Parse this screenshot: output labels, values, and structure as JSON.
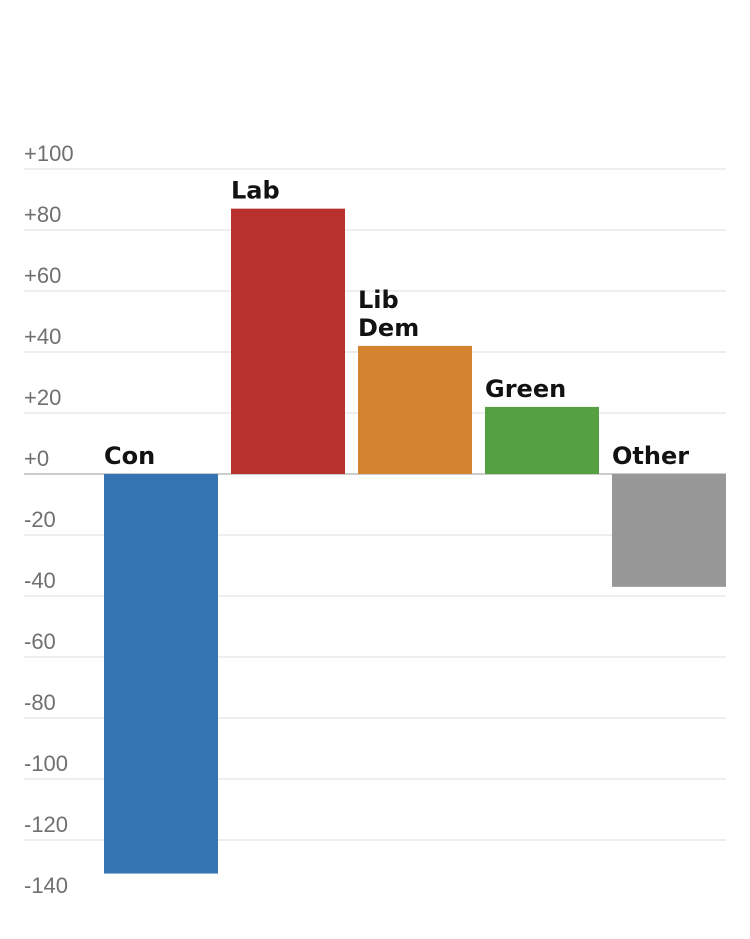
{
  "chart_data": {
    "type": "bar",
    "categories": [
      "Con",
      "Lab",
      "Lib Dem",
      "Green",
      "Other"
    ],
    "category_label_lines": [
      [
        "Con"
      ],
      [
        "Lab"
      ],
      [
        "Lib",
        "Dem"
      ],
      [
        "Green"
      ],
      [
        "Other"
      ]
    ],
    "values": [
      -131,
      87,
      42,
      22,
      -37
    ],
    "colors": [
      "#3574b3",
      "#b8312f",
      "#d4842f",
      "#55a043",
      "#989898"
    ],
    "y_ticks": [
      100,
      80,
      60,
      40,
      20,
      0,
      -20,
      -40,
      -60,
      -80,
      -100,
      -120,
      -140
    ],
    "y_tick_labels": [
      "+100",
      "+80",
      "+60",
      "+40",
      "+20",
      "+0",
      "-20",
      "-40",
      "-60",
      "-80",
      "-100",
      "-120",
      "-140"
    ],
    "ylim": [
      -140,
      100
    ],
    "grid": true,
    "title": "",
    "xlabel": "",
    "ylabel": ""
  }
}
